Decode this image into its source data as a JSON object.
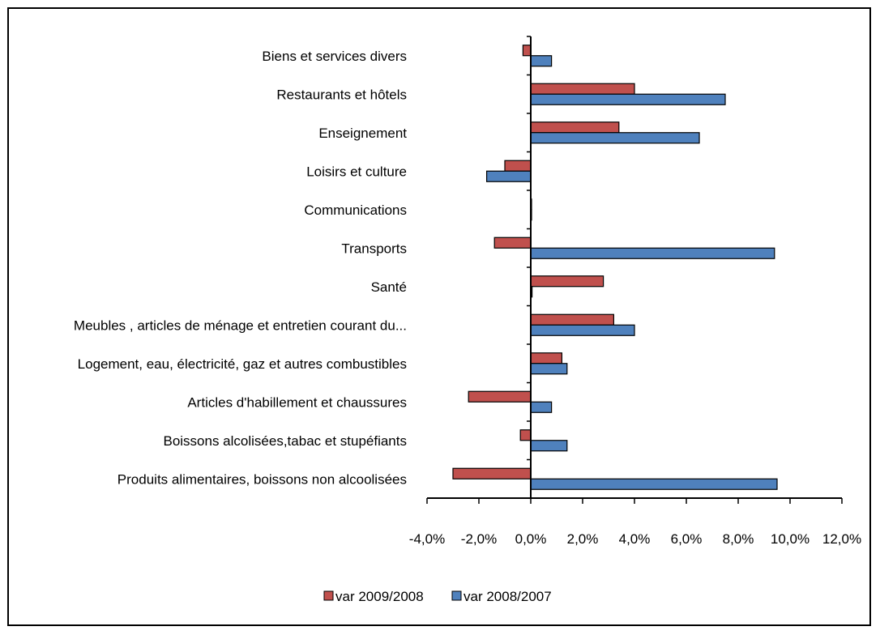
{
  "chart_data": {
    "type": "bar",
    "orientation": "horizontal",
    "categories": [
      "Produits alimentaires, boissons non alcoolisées",
      "Boissons alcolisées,tabac et stupéfiants",
      "Articles d'habillement et chaussures",
      "Logement, eau, électricité, gaz et autres combustibles",
      "Meubles , articles de ménage et entretien courant du...",
      "Santé",
      "Transports",
      "Communications",
      "Loisirs et culture",
      "Enseignement",
      "Restaurants et hôtels",
      "Biens et services divers"
    ],
    "series": [
      {
        "name": "var 2009/2008",
        "color": "#c0504d",
        "values": [
          -3.0,
          -0.4,
          -2.4,
          1.2,
          3.2,
          2.8,
          -1.4,
          0.0,
          -1.0,
          3.4,
          4.0,
          -0.3
        ]
      },
      {
        "name": "var 2008/2007",
        "color": "#4f81bd",
        "values": [
          9.5,
          1.4,
          0.8,
          1.4,
          4.0,
          0.05,
          9.4,
          0.0,
          -1.7,
          6.5,
          7.5,
          0.8
        ]
      }
    ],
    "x_ticks": [
      "-4,0%",
      "-2,0%",
      "0,0%",
      "2,0%",
      "4,0%",
      "6,0%",
      "8,0%",
      "10,0%",
      "12,0%"
    ],
    "xlim": [
      -4,
      12
    ],
    "grid": false,
    "legend_position": "bottom"
  }
}
